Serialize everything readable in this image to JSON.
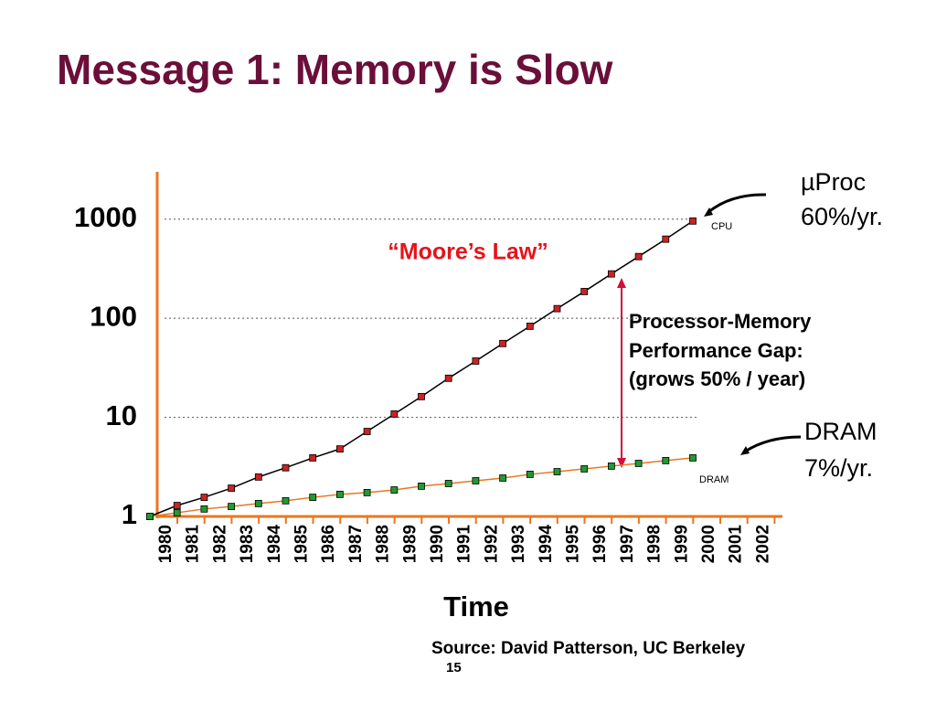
{
  "chart_data": {
    "type": "line",
    "title": "Message 1: Memory is Slow",
    "x_label": "Time",
    "source": "Source: David Patterson, UC Berkeley",
    "page_number": "15",
    "annotations": {
      "cpu_name": "µProc",
      "cpu_rate": "60%/yr.",
      "dram_name": "DRAM",
      "dram_rate": "7%/yr.",
      "moore": "“Moore’s Law”",
      "gap": [
        "Processor-Memory",
        "Performance Gap:",
        "(grows 50% / year)"
      ],
      "cpu_tag": "CPU",
      "dram_tag": "DRAM"
    },
    "categories": [
      "1980",
      "1981",
      "1982",
      "1983",
      "1984",
      "1985",
      "1986",
      "1987",
      "1988",
      "1989",
      "1990",
      "1991",
      "1992",
      "1993",
      "1994",
      "1995",
      "1996",
      "1997",
      "1998",
      "1999",
      "2000",
      "2001",
      "2002"
    ],
    "series": [
      {
        "name": "CPU",
        "color": "#000000",
        "marker_color": "#cc2222",
        "values": [
          1,
          1.29,
          1.56,
          1.93,
          2.5,
          3.1,
          3.9,
          4.8,
          7.2,
          10.8,
          16.2,
          24.8,
          37,
          55.6,
          83,
          125,
          186,
          280,
          419,
          628,
          957,
          null,
          null
        ]
      },
      {
        "name": "DRAM",
        "color": "#e87722",
        "marker_color": "#229933",
        "values": [
          1,
          1.09,
          1.19,
          1.26,
          1.35,
          1.44,
          1.56,
          1.67,
          1.74,
          1.85,
          2.02,
          2.15,
          2.29,
          2.44,
          2.66,
          2.83,
          3.02,
          3.22,
          3.43,
          3.66,
          3.9,
          null,
          null
        ]
      }
    ],
    "log_y": true,
    "ylim": [
      1,
      3000
    ],
    "yticks": [
      1,
      10,
      100,
      1000
    ],
    "grid": true,
    "axis_color": "#e87722",
    "title_color": "#6b0f3a"
  }
}
